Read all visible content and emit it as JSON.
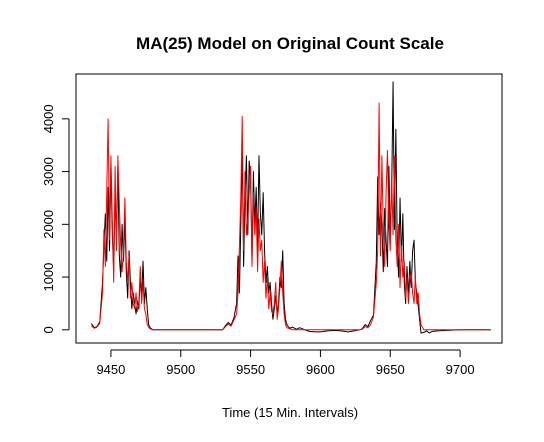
{
  "chart_data": {
    "type": "line",
    "title": "MA(25) Model on Original Count Scale",
    "xlabel": "Time (15 Min. Intervals)",
    "ylabel": "",
    "xlim": [
      9425,
      9730
    ],
    "ylim": [
      -250,
      4850
    ],
    "x_ticks": [
      9450,
      9500,
      9550,
      9600,
      9650,
      9700
    ],
    "y_ticks": [
      0,
      1000,
      2000,
      3000,
      4000
    ],
    "grid": false,
    "legend": "none",
    "series": [
      {
        "color": "#000000",
        "points": [
          [
            9436,
            120
          ],
          [
            9438,
            40
          ],
          [
            9440,
            60
          ],
          [
            9442,
            150
          ],
          [
            9444,
            900
          ],
          [
            9445,
            1600
          ],
          [
            9446,
            2200
          ],
          [
            9447,
            1300
          ],
          [
            9448,
            2700
          ],
          [
            9449,
            1500
          ],
          [
            9450,
            3100
          ],
          [
            9451,
            1800
          ],
          [
            9452,
            1100
          ],
          [
            9453,
            2500
          ],
          [
            9454,
            1800
          ],
          [
            9455,
            3100
          ],
          [
            9456,
            1400
          ],
          [
            9457,
            1000
          ],
          [
            9458,
            2000
          ],
          [
            9459,
            1300
          ],
          [
            9460,
            2100
          ],
          [
            9461,
            1100
          ],
          [
            9462,
            600
          ],
          [
            9463,
            1500
          ],
          [
            9464,
            900
          ],
          [
            9465,
            400
          ],
          [
            9466,
            700
          ],
          [
            9467,
            500
          ],
          [
            9468,
            300
          ],
          [
            9469,
            550
          ],
          [
            9470,
            400
          ],
          [
            9471,
            1000
          ],
          [
            9472,
            600
          ],
          [
            9473,
            1300
          ],
          [
            9474,
            500
          ],
          [
            9475,
            800
          ],
          [
            9476,
            400
          ],
          [
            9477,
            100
          ],
          [
            9478,
            40
          ],
          [
            9480,
            0
          ],
          [
            9500,
            0
          ],
          [
            9520,
            0
          ],
          [
            9530,
            0
          ],
          [
            9532,
            80
          ],
          [
            9534,
            140
          ],
          [
            9536,
            90
          ],
          [
            9538,
            220
          ],
          [
            9540,
            500
          ],
          [
            9541,
            1400
          ],
          [
            9542,
            700
          ],
          [
            9543,
            2000
          ],
          [
            9544,
            3400
          ],
          [
            9545,
            1200
          ],
          [
            9546,
            2400
          ],
          [
            9547,
            3300
          ],
          [
            9548,
            1800
          ],
          [
            9549,
            3200
          ],
          [
            9550,
            2800
          ],
          [
            9551,
            1300
          ],
          [
            9552,
            3000
          ],
          [
            9553,
            2000
          ],
          [
            9554,
            2700
          ],
          [
            9555,
            1500
          ],
          [
            9556,
            3300
          ],
          [
            9557,
            2200
          ],
          [
            9558,
            1800
          ],
          [
            9559,
            2600
          ],
          [
            9560,
            1500
          ],
          [
            9561,
            900
          ],
          [
            9562,
            1200
          ],
          [
            9563,
            700
          ],
          [
            9564,
            900
          ],
          [
            9565,
            500
          ],
          [
            9566,
            200
          ],
          [
            9567,
            400
          ],
          [
            9568,
            650
          ],
          [
            9569,
            300
          ],
          [
            9570,
            500
          ],
          [
            9571,
            1000
          ],
          [
            9572,
            800
          ],
          [
            9573,
            1500
          ],
          [
            9574,
            500
          ],
          [
            9575,
            200
          ],
          [
            9576,
            100
          ],
          [
            9577,
            60
          ],
          [
            9578,
            30
          ],
          [
            9580,
            50
          ],
          [
            9583,
            10
          ],
          [
            9585,
            40
          ],
          [
            9588,
            10
          ],
          [
            9592,
            -30
          ],
          [
            9596,
            -40
          ],
          [
            9600,
            -40
          ],
          [
            9605,
            -20
          ],
          [
            9610,
            -10
          ],
          [
            9615,
            -20
          ],
          [
            9620,
            -40
          ],
          [
            9624,
            -20
          ],
          [
            9628,
            0
          ],
          [
            9630,
            20
          ],
          [
            9632,
            100
          ],
          [
            9634,
            60
          ],
          [
            9636,
            180
          ],
          [
            9638,
            280
          ],
          [
            9640,
            1300
          ],
          [
            9641,
            2900
          ],
          [
            9642,
            1800
          ],
          [
            9643,
            2400
          ],
          [
            9644,
            2000
          ],
          [
            9645,
            1100
          ],
          [
            9646,
            2300
          ],
          [
            9647,
            1700
          ],
          [
            9648,
            1200
          ],
          [
            9649,
            3100
          ],
          [
            9650,
            1800
          ],
          [
            9651,
            2600
          ],
          [
            9652,
            4700
          ],
          [
            9653,
            1900
          ],
          [
            9654,
            3800
          ],
          [
            9655,
            1600
          ],
          [
            9656,
            1000
          ],
          [
            9657,
            2500
          ],
          [
            9658,
            1300
          ],
          [
            9659,
            2200
          ],
          [
            9660,
            900
          ],
          [
            9661,
            500
          ],
          [
            9662,
            1200
          ],
          [
            9663,
            600
          ],
          [
            9664,
            1300
          ],
          [
            9665,
            800
          ],
          [
            9666,
            1500
          ],
          [
            9667,
            1700
          ],
          [
            9668,
            900
          ],
          [
            9669,
            700
          ],
          [
            9670,
            450
          ],
          [
            9671,
            200
          ],
          [
            9672,
            -60
          ],
          [
            9674,
            -50
          ],
          [
            9676,
            -20
          ],
          [
            9678,
            -60
          ],
          [
            9680,
            -30
          ],
          [
            9684,
            -20
          ],
          [
            9690,
            -10
          ],
          [
            9700,
            0
          ],
          [
            9710,
            0
          ],
          [
            9722,
            0
          ]
        ]
      },
      {
        "color": "#ff0000",
        "points": [
          [
            9436,
            80
          ],
          [
            9438,
            30
          ],
          [
            9440,
            50
          ],
          [
            9442,
            120
          ],
          [
            9444,
            700
          ],
          [
            9445,
            1900
          ],
          [
            9446,
            1200
          ],
          [
            9447,
            2600
          ],
          [
            9448,
            4000
          ],
          [
            9449,
            1700
          ],
          [
            9450,
            3300
          ],
          [
            9451,
            2100
          ],
          [
            9452,
            900
          ],
          [
            9453,
            3100
          ],
          [
            9454,
            1500
          ],
          [
            9455,
            3300
          ],
          [
            9456,
            2400
          ],
          [
            9457,
            1600
          ],
          [
            9458,
            1100
          ],
          [
            9459,
            1500
          ],
          [
            9460,
            2500
          ],
          [
            9461,
            1300
          ],
          [
            9462,
            900
          ],
          [
            9463,
            1400
          ],
          [
            9464,
            600
          ],
          [
            9465,
            900
          ],
          [
            9466,
            500
          ],
          [
            9467,
            400
          ],
          [
            9468,
            700
          ],
          [
            9469,
            350
          ],
          [
            9470,
            500
          ],
          [
            9471,
            1200
          ],
          [
            9472,
            500
          ],
          [
            9473,
            900
          ],
          [
            9474,
            400
          ],
          [
            9475,
            300
          ],
          [
            9476,
            100
          ],
          [
            9477,
            50
          ],
          [
            9478,
            20
          ],
          [
            9480,
            0
          ],
          [
            9500,
            0
          ],
          [
            9520,
            0
          ],
          [
            9530,
            0
          ],
          [
            9532,
            60
          ],
          [
            9534,
            110
          ],
          [
            9536,
            70
          ],
          [
            9538,
            180
          ],
          [
            9540,
            300
          ],
          [
            9541,
            700
          ],
          [
            9542,
            1600
          ],
          [
            9543,
            2500
          ],
          [
            9544,
            4050
          ],
          [
            9545,
            1500
          ],
          [
            9546,
            3000
          ],
          [
            9547,
            1800
          ],
          [
            9548,
            2100
          ],
          [
            9549,
            2600
          ],
          [
            9550,
            3100
          ],
          [
            9551,
            1200
          ],
          [
            9552,
            2600
          ],
          [
            9553,
            1800
          ],
          [
            9554,
            2300
          ],
          [
            9555,
            1100
          ],
          [
            9556,
            2100
          ],
          [
            9557,
            1500
          ],
          [
            9558,
            1700
          ],
          [
            9559,
            900
          ],
          [
            9560,
            1300
          ],
          [
            9561,
            600
          ],
          [
            9562,
            1000
          ],
          [
            9563,
            400
          ],
          [
            9564,
            700
          ],
          [
            9565,
            350
          ],
          [
            9566,
            300
          ],
          [
            9567,
            500
          ],
          [
            9568,
            900
          ],
          [
            9569,
            200
          ],
          [
            9570,
            400
          ],
          [
            9571,
            800
          ],
          [
            9572,
            1300
          ],
          [
            9573,
            700
          ],
          [
            9574,
            300
          ],
          [
            9575,
            100
          ],
          [
            9576,
            40
          ],
          [
            9578,
            20
          ],
          [
            9580,
            0
          ],
          [
            9585,
            0
          ],
          [
            9590,
            0
          ],
          [
            9600,
            0
          ],
          [
            9620,
            0
          ],
          [
            9628,
            0
          ],
          [
            9630,
            10
          ],
          [
            9632,
            60
          ],
          [
            9634,
            40
          ],
          [
            9636,
            100
          ],
          [
            9638,
            250
          ],
          [
            9640,
            900
          ],
          [
            9641,
            1500
          ],
          [
            9642,
            4300
          ],
          [
            9643,
            1400
          ],
          [
            9644,
            3300
          ],
          [
            9645,
            1900
          ],
          [
            9646,
            1200
          ],
          [
            9647,
            2600
          ],
          [
            9648,
            3400
          ],
          [
            9649,
            2000
          ],
          [
            9650,
            1500
          ],
          [
            9651,
            2900
          ],
          [
            9652,
            1800
          ],
          [
            9653,
            3300
          ],
          [
            9654,
            1700
          ],
          [
            9655,
            1200
          ],
          [
            9656,
            2000
          ],
          [
            9657,
            800
          ],
          [
            9658,
            1600
          ],
          [
            9659,
            1000
          ],
          [
            9660,
            1300
          ],
          [
            9661,
            600
          ],
          [
            9662,
            1000
          ],
          [
            9663,
            500
          ],
          [
            9664,
            900
          ],
          [
            9665,
            1100
          ],
          [
            9666,
            700
          ],
          [
            9667,
            500
          ],
          [
            9668,
            1000
          ],
          [
            9669,
            500
          ],
          [
            9670,
            700
          ],
          [
            9671,
            300
          ],
          [
            9672,
            100
          ],
          [
            9674,
            0
          ],
          [
            9676,
            0
          ],
          [
            9680,
            0
          ],
          [
            9690,
            0
          ],
          [
            9700,
            0
          ],
          [
            9710,
            0
          ],
          [
            9722,
            0
          ]
        ]
      }
    ]
  }
}
